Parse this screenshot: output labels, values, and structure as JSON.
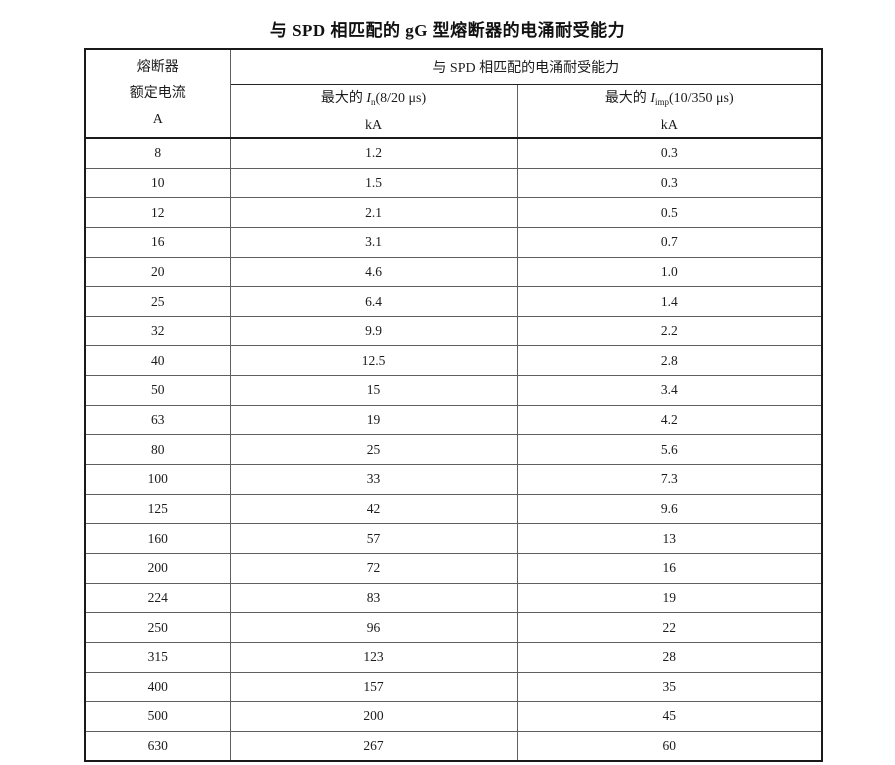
{
  "title": "与 SPD 相匹配的 gG 型熔断器的电涌耐受能力",
  "table": {
    "col1_header_lines": [
      "熔断器",
      "额定电流",
      "A"
    ],
    "span_header": "与 SPD 相匹配的电涌耐受能力",
    "col2_header": {
      "prefix": "最大的 ",
      "symbol": "I",
      "sub": "n",
      "detail": "(8/20 μs)",
      "unit": "kA"
    },
    "col3_header": {
      "prefix": "最大的 ",
      "symbol": "I",
      "sub": "imp",
      "detail": "(10/350 μs)",
      "unit": "kA"
    },
    "columns": [
      "fuse-rated-current-A",
      "max-In-kA",
      "max-Iimp-kA"
    ],
    "rows": [
      [
        "8",
        "1.2",
        "0.3"
      ],
      [
        "10",
        "1.5",
        "0.3"
      ],
      [
        "12",
        "2.1",
        "0.5"
      ],
      [
        "16",
        "3.1",
        "0.7"
      ],
      [
        "20",
        "4.6",
        "1.0"
      ],
      [
        "25",
        "6.4",
        "1.4"
      ],
      [
        "32",
        "9.9",
        "2.2"
      ],
      [
        "40",
        "12.5",
        "2.8"
      ],
      [
        "50",
        "15",
        "3.4"
      ],
      [
        "63",
        "19",
        "4.2"
      ],
      [
        "80",
        "25",
        "5.6"
      ],
      [
        "100",
        "33",
        "7.3"
      ],
      [
        "125",
        "42",
        "9.6"
      ],
      [
        "160",
        "57",
        "13"
      ],
      [
        "200",
        "72",
        "16"
      ],
      [
        "224",
        "83",
        "19"
      ],
      [
        "250",
        "96",
        "22"
      ],
      [
        "315",
        "123",
        "28"
      ],
      [
        "400",
        "157",
        "35"
      ],
      [
        "500",
        "200",
        "45"
      ],
      [
        "630",
        "267",
        "60"
      ]
    ]
  },
  "colors": {
    "background": "#ffffff",
    "text": "#1b1b1b",
    "border_dark": "#1a1a1a",
    "border_light": "#5f5f5f"
  }
}
